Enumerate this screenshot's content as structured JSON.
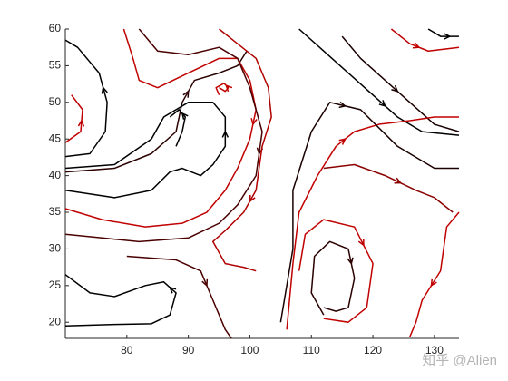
{
  "chart_data": {
    "type": "streamline",
    "xlim": [
      70,
      134
    ],
    "ylim": [
      17.8,
      60
    ],
    "xticks": [
      80,
      90,
      100,
      110,
      120,
      130
    ],
    "yticks": [
      20,
      25,
      30,
      35,
      40,
      45,
      50,
      55,
      60
    ],
    "series": [
      {
        "color": "#000000",
        "x": [
          70,
          74,
          76.5,
          76.8,
          75.5,
          72,
          70
        ],
        "y": [
          42.6,
          43,
          46,
          50,
          54,
          57.5,
          58.5
        ]
      },
      {
        "color": "#c00000",
        "x": [
          70,
          72.5,
          72.8,
          71
        ],
        "y": [
          44.5,
          46,
          49,
          51
        ]
      },
      {
        "color": "#2a0000",
        "x": [
          70,
          78,
          84,
          88,
          89,
          91,
          95,
          98,
          99.5
        ],
        "y": [
          40.5,
          41,
          43,
          46,
          50,
          53,
          54,
          55,
          57
        ]
      },
      {
        "color": "#c00000",
        "x": [
          79.5,
          81,
          82,
          85,
          90,
          95,
          98,
          100,
          101,
          100,
          98,
          96,
          93,
          89,
          83,
          76,
          70
        ],
        "y": [
          60,
          56,
          53,
          52,
          54,
          56,
          56,
          53,
          49,
          45,
          41,
          38,
          35,
          33.5,
          33,
          34,
          35.5
        ]
      },
      {
        "color": "#000000",
        "x": [
          70,
          78,
          84,
          87,
          89,
          92,
          94,
          96,
          96,
          94,
          90,
          86,
          84,
          78,
          70
        ],
        "y": [
          38,
          37,
          38,
          40.5,
          41,
          40,
          41.5,
          44,
          48,
          50,
          50,
          48,
          45,
          41.5,
          41
        ]
      },
      {
        "color": "#c00000",
        "x": [
          95,
          96,
          96.5,
          95.8,
          94.5,
          95
        ],
        "y": [
          52,
          51.5,
          52,
          52.6,
          52,
          51
        ]
      },
      {
        "color": "#000000",
        "x": [
          88,
          89,
          89.5,
          88.5,
          87
        ],
        "y": [
          44,
          46,
          48,
          49,
          48
        ]
      },
      {
        "color": "#4a0000",
        "x": [
          82,
          85,
          90,
          95,
          98,
          100,
          102,
          101,
          98,
          95,
          90,
          82,
          76,
          70
        ],
        "y": [
          60,
          57,
          56.5,
          57.5,
          56,
          52,
          46,
          40,
          36,
          33.5,
          31.5,
          31,
          31.5,
          32
        ]
      },
      {
        "color": "#b00000",
        "x": [
          95,
          98,
          101,
          103,
          103.5,
          102,
          101,
          99,
          96,
          94,
          96,
          99,
          101
        ],
        "y": [
          60,
          58,
          56,
          52,
          48,
          44,
          38,
          35,
          32.5,
          31,
          28,
          27.5,
          27
        ]
      },
      {
        "color": "#000000",
        "x": [
          108,
          112,
          116,
          120,
          124,
          128,
          134
        ],
        "y": [
          60,
          57,
          54,
          51,
          48,
          46,
          45.5
        ]
      },
      {
        "color": "#1a0000",
        "x": [
          115,
          118,
          122,
          126,
          130,
          134
        ],
        "y": [
          59,
          56,
          53,
          50,
          47,
          46
        ]
      },
      {
        "color": "#c00000",
        "x": [
          123,
          126,
          129,
          134
        ],
        "y": [
          60,
          58,
          57,
          57.5
        ]
      },
      {
        "color": "#000000",
        "x": [
          129,
          131,
          134
        ],
        "y": [
          60,
          59,
          59
        ]
      },
      {
        "color": "#2a0000",
        "x": [
          112,
          110,
          110.5,
          113,
          116,
          117,
          116,
          114,
          112
        ],
        "y": [
          21,
          24,
          29,
          31,
          30,
          26,
          22,
          21.5,
          22
        ]
      },
      {
        "color": "#c00000",
        "x": [
          108,
          109,
          112,
          117,
          120,
          119,
          116,
          112
        ],
        "y": [
          27,
          32,
          34,
          33,
          28,
          22,
          20,
          20.5
        ]
      },
      {
        "color": "#c00000",
        "x": [
          106,
          107,
          108,
          111,
          114,
          117,
          121,
          126,
          130,
          134
        ],
        "y": [
          19,
          28,
          35,
          40,
          44,
          46,
          47,
          47.5,
          48,
          48
        ]
      },
      {
        "color": "#c00000",
        "x": [
          134,
          132,
          131,
          128,
          127,
          126
        ],
        "y": [
          35,
          33,
          27,
          23,
          20,
          18
        ]
      },
      {
        "color": "#000000",
        "x": [
          70,
          78,
          84,
          87,
          88,
          86,
          83,
          78,
          74,
          70
        ],
        "y": [
          19.5,
          19.7,
          19.8,
          21,
          24,
          25.5,
          25,
          23.5,
          24,
          26.5
        ]
      },
      {
        "color": "#4a0000",
        "x": [
          80,
          88,
          92,
          94,
          96,
          97
        ],
        "y": [
          29,
          28.5,
          27,
          23,
          19,
          17.8
        ]
      },
      {
        "color": "#8b0000",
        "x": [
          112,
          117,
          122,
          127,
          130,
          133
        ],
        "y": [
          41,
          41.5,
          40,
          38,
          37,
          35
        ]
      },
      {
        "color": "#1a0000",
        "x": [
          105,
          107,
          107,
          110,
          113,
          118,
          124,
          130,
          134
        ],
        "y": [
          20,
          30,
          38,
          46,
          50,
          49,
          44,
          41,
          41
        ]
      }
    ]
  },
  "watermark": "知乎 @Alien"
}
